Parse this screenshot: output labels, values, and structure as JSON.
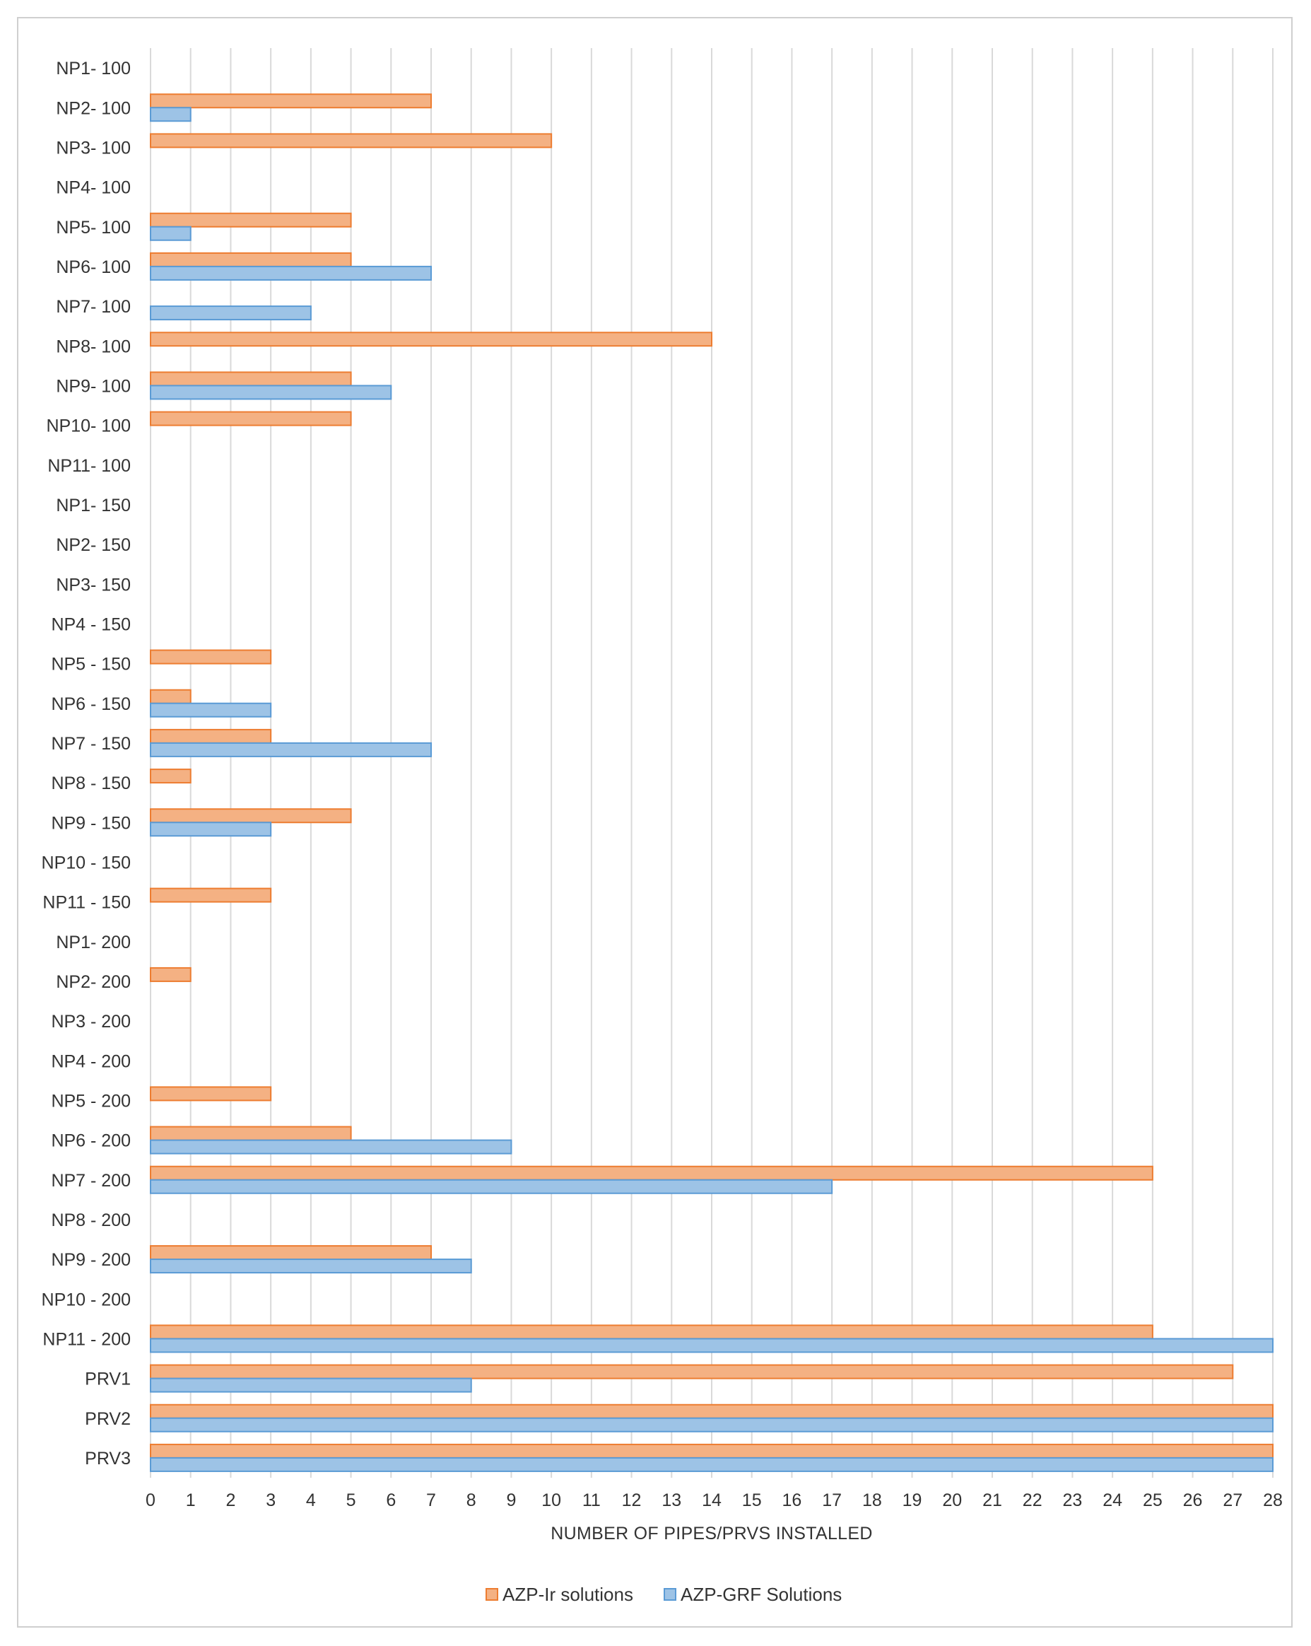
{
  "chart_data": {
    "type": "bar",
    "orientation": "horizontal",
    "title": "",
    "xlabel": "NUMBER OF PIPES/PRVS INSTALLED",
    "ylabel": "",
    "xlim": [
      0,
      28
    ],
    "x_ticks": [
      0,
      1,
      2,
      3,
      4,
      5,
      6,
      7,
      8,
      9,
      10,
      11,
      12,
      13,
      14,
      15,
      16,
      17,
      18,
      19,
      20,
      21,
      22,
      23,
      24,
      25,
      26,
      27,
      28
    ],
    "grid": true,
    "legend_position": "bottom",
    "categories": [
      "NP1- 100",
      "NP2- 100",
      "NP3- 100",
      "NP4- 100",
      "NP5- 100",
      "NP6- 100",
      "NP7- 100",
      "NP8- 100",
      "NP9- 100",
      "NP10- 100",
      "NP11- 100",
      "NP1- 150",
      "NP2- 150",
      "NP3- 150",
      "NP4 - 150",
      "NP5 - 150",
      "NP6 - 150",
      "NP7 - 150",
      "NP8 - 150",
      "NP9 - 150",
      "NP10 - 150",
      "NP11 - 150",
      "NP1- 200",
      "NP2- 200",
      "NP3 - 200",
      "NP4 - 200",
      "NP5 - 200",
      "NP6 - 200",
      "NP7 - 200",
      "NP8 - 200",
      "NP9 - 200",
      "NP10 - 200",
      "NP11 - 200",
      "PRV1",
      "PRV2",
      "PRV3"
    ],
    "series": [
      {
        "name": "AZP-Ir solutions",
        "color": "#F4B183",
        "stroke": "#ED7D31",
        "values": [
          0,
          7,
          10,
          0,
          5,
          5,
          0,
          14,
          5,
          5,
          0,
          0,
          0,
          0,
          0,
          3,
          1,
          3,
          1,
          5,
          0,
          3,
          0,
          1,
          0,
          0,
          3,
          5,
          25,
          0,
          7,
          0,
          25,
          27,
          28,
          28
        ]
      },
      {
        "name": "AZP-GRF Solutions",
        "color": "#9DC3E6",
        "stroke": "#5B9BD5",
        "values": [
          0,
          1,
          0,
          0,
          1,
          7,
          4,
          0,
          6,
          0,
          0,
          0,
          0,
          0,
          0,
          0,
          3,
          7,
          0,
          3,
          0,
          0,
          0,
          0,
          0,
          0,
          0,
          9,
          17,
          0,
          8,
          0,
          28,
          8,
          28,
          28
        ]
      }
    ]
  }
}
